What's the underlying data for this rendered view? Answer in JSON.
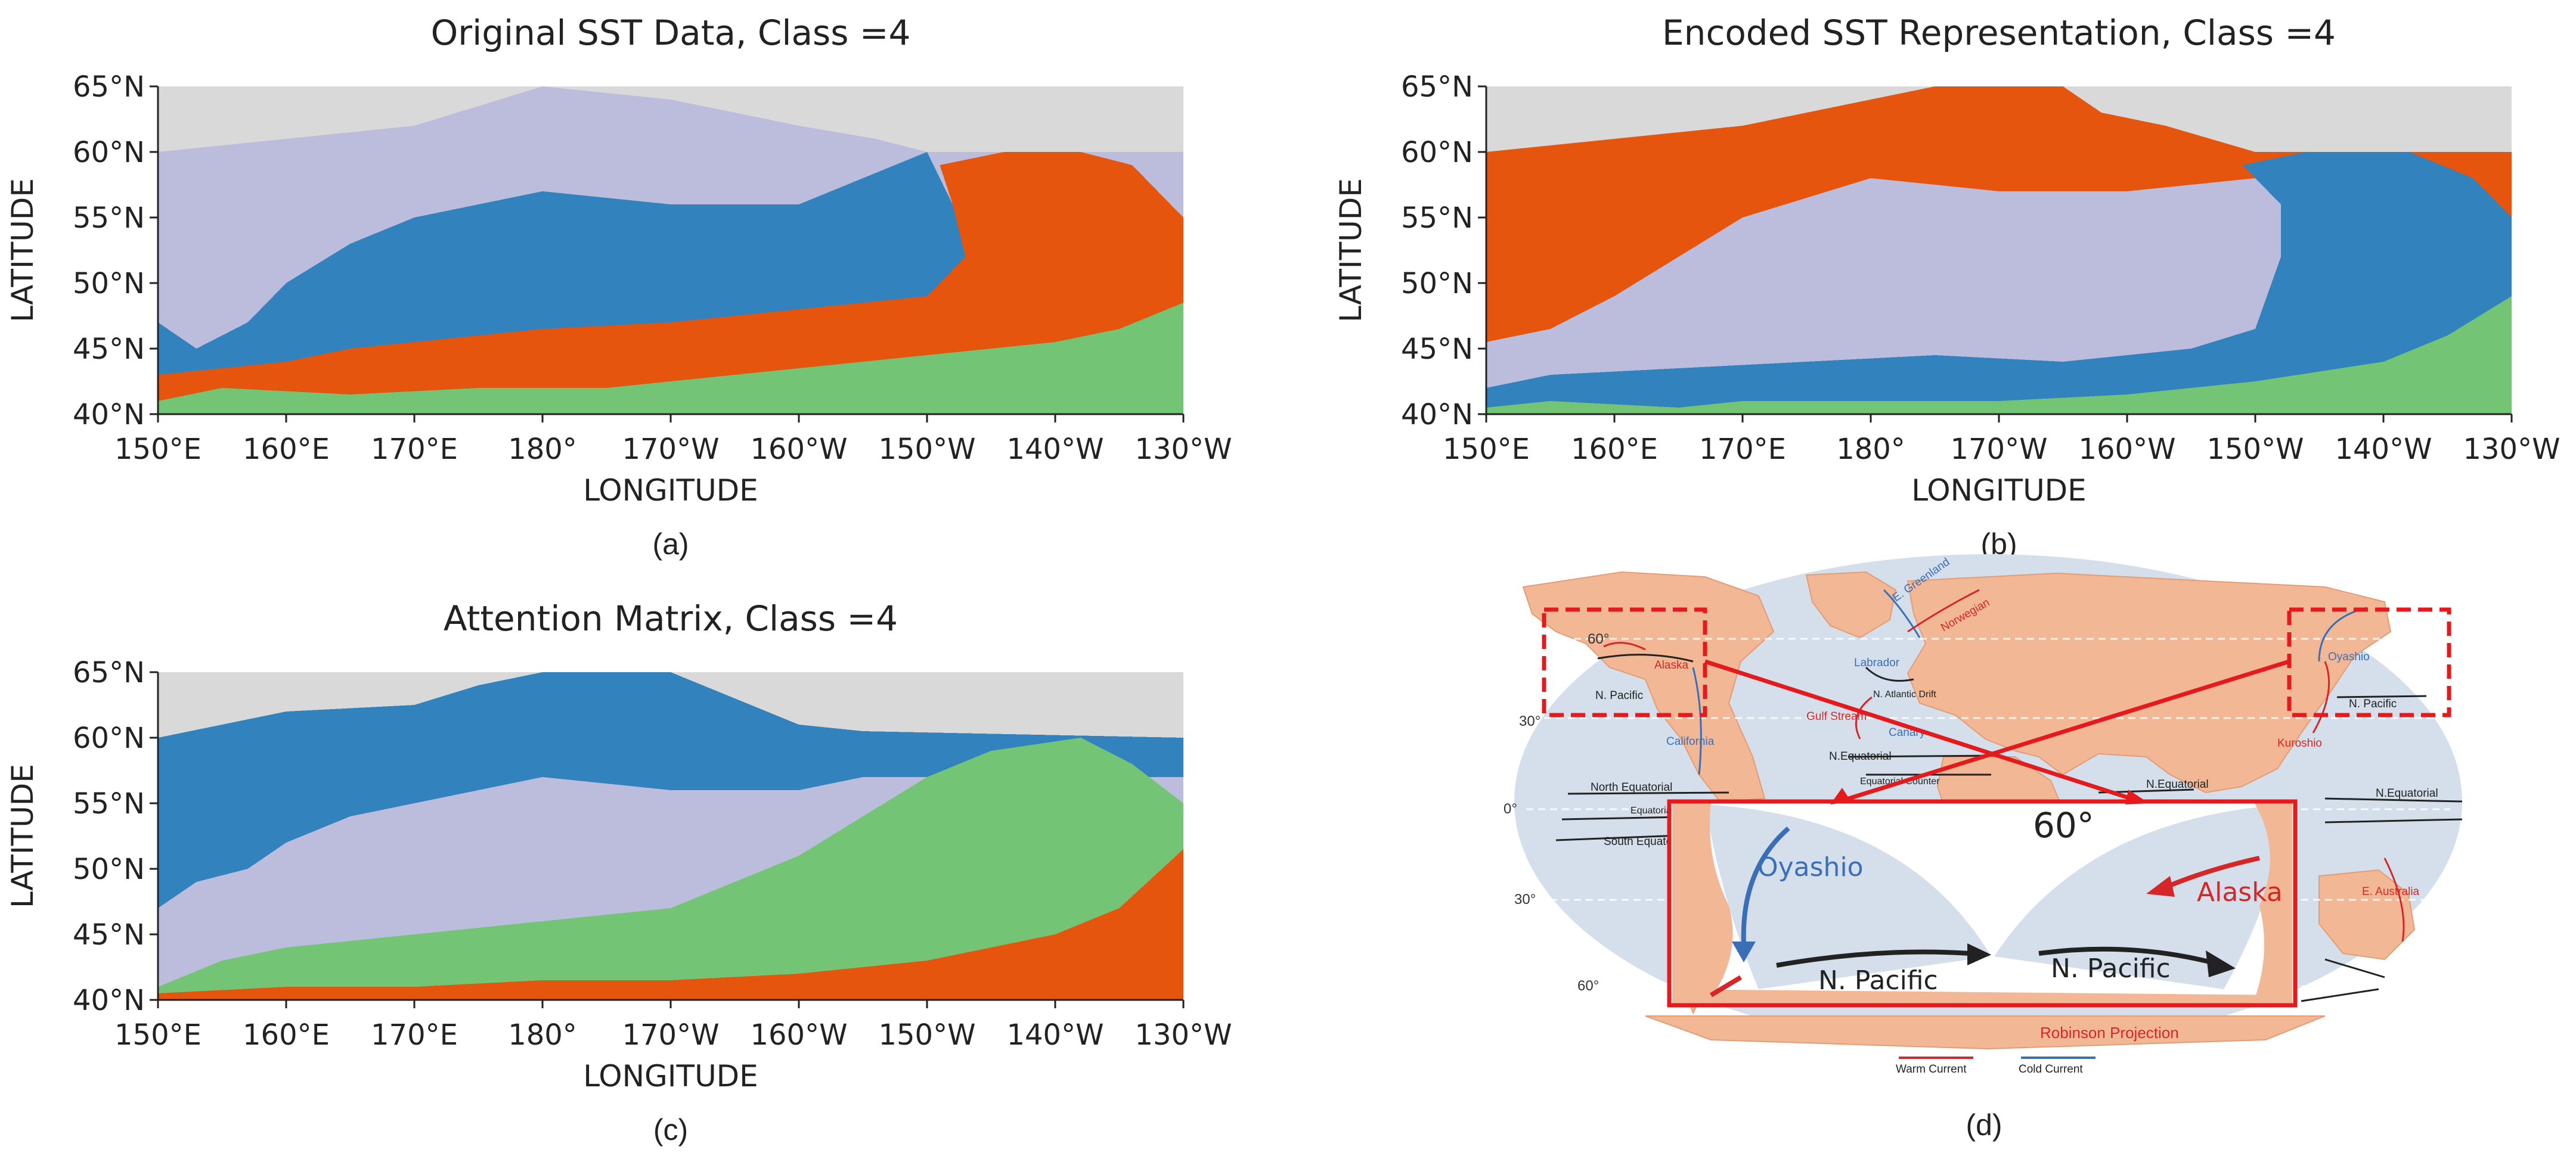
{
  "colors": {
    "land": "#d9d9d9",
    "lavender": "#bcbddc",
    "blue": "#3182bd",
    "orange": "#e6550d",
    "green": "#74c476",
    "red": "#e41a1c"
  },
  "chart_data": [
    {
      "type": "heatmap",
      "title": "Original SST Data, Class =4",
      "caption": "(a)",
      "xlabel": "LONGITUDE",
      "ylabel": "LATITUDE",
      "xlim": [
        150,
        230
      ],
      "ylim": [
        40,
        65
      ],
      "xticks": [
        {
          "value": 150,
          "label": "150°E"
        },
        {
          "value": 160,
          "label": "160°E"
        },
        {
          "value": 170,
          "label": "170°E"
        },
        {
          "value": 180,
          "label": "180°"
        },
        {
          "value": 190,
          "label": "170°W"
        },
        {
          "value": 200,
          "label": "160°W"
        },
        {
          "value": 210,
          "label": "150°W"
        },
        {
          "value": 220,
          "label": "140°W"
        },
        {
          "value": 230,
          "label": "130°W"
        }
      ],
      "yticks": [
        {
          "value": 40,
          "label": "40°N"
        },
        {
          "value": 45,
          "label": "45°N"
        },
        {
          "value": 50,
          "label": "50°N"
        },
        {
          "value": 55,
          "label": "55°N"
        },
        {
          "value": 60,
          "label": "60°N"
        },
        {
          "value": 65,
          "label": "65°N"
        }
      ],
      "categories": [
        "land",
        "lavender",
        "blue",
        "orange",
        "green"
      ],
      "layers": [
        {
          "category": "lavender",
          "boundary": [
            [
              150,
              60
            ],
            [
              160,
              61
            ],
            [
              170,
              62
            ],
            [
              180,
              65
            ],
            [
              190,
              64
            ],
            [
              200,
              62
            ],
            [
              206,
              61
            ],
            [
              210,
              60
            ],
            [
              230,
              60
            ]
          ]
        },
        {
          "category": "blue",
          "boundary": [
            [
              150,
              47
            ],
            [
              153,
              45
            ],
            [
              157,
              47
            ],
            [
              160,
              50
            ],
            [
              165,
              53
            ],
            [
              170,
              55
            ],
            [
              180,
              57
            ],
            [
              190,
              56
            ],
            [
              200,
              56
            ],
            [
              210,
              60
            ],
            [
              211,
              58
            ],
            [
              213,
              54
            ],
            [
              214,
              52
            ],
            [
              230,
              52
            ]
          ]
        },
        {
          "category": "orange",
          "boundary": [
            [
              150,
              43
            ],
            [
              155,
              43.5
            ],
            [
              160,
              44
            ],
            [
              165,
              45
            ],
            [
              170,
              45.5
            ],
            [
              180,
              46.5
            ],
            [
              190,
              47
            ],
            [
              200,
              48
            ],
            [
              210,
              49
            ],
            [
              213,
              52
            ],
            [
              212,
              56
            ],
            [
              211,
              59
            ],
            [
              216,
              60
            ],
            [
              222,
              60
            ],
            [
              226,
              59
            ],
            [
              230,
              55
            ]
          ]
        },
        {
          "category": "green",
          "boundary": [
            [
              150,
              41
            ],
            [
              155,
              42
            ],
            [
              165,
              41.5
            ],
            [
              175,
              42
            ],
            [
              185,
              42
            ],
            [
              190,
              42.5
            ],
            [
              200,
              43.5
            ],
            [
              210,
              44.5
            ],
            [
              220,
              45.5
            ],
            [
              225,
              46.5
            ],
            [
              230,
              48.5
            ]
          ]
        }
      ]
    },
    {
      "type": "heatmap",
      "title": "Encoded SST Representation, Class =4",
      "caption": "(b)",
      "xlabel": "LONGITUDE",
      "ylabel": "LATITUDE",
      "xlim": [
        150,
        230
      ],
      "ylim": [
        40,
        65
      ],
      "xticks": [
        {
          "value": 150,
          "label": "150°E"
        },
        {
          "value": 160,
          "label": "160°E"
        },
        {
          "value": 170,
          "label": "170°E"
        },
        {
          "value": 180,
          "label": "180°"
        },
        {
          "value": 190,
          "label": "170°W"
        },
        {
          "value": 200,
          "label": "160°W"
        },
        {
          "value": 210,
          "label": "150°W"
        },
        {
          "value": 220,
          "label": "140°W"
        },
        {
          "value": 230,
          "label": "130°W"
        }
      ],
      "yticks": [
        {
          "value": 40,
          "label": "40°N"
        },
        {
          "value": 45,
          "label": "45°N"
        },
        {
          "value": 50,
          "label": "50°N"
        },
        {
          "value": 55,
          "label": "55°N"
        },
        {
          "value": 60,
          "label": "60°N"
        },
        {
          "value": 65,
          "label": "65°N"
        }
      ],
      "categories": [
        "land",
        "orange",
        "lavender",
        "blue",
        "green"
      ],
      "layers": [
        {
          "category": "orange",
          "boundary": [
            [
              150,
              60
            ],
            [
              155,
              60.5
            ],
            [
              160,
              61
            ],
            [
              170,
              62
            ],
            [
              180,
              64
            ],
            [
              185,
              65
            ],
            [
              195,
              65
            ],
            [
              198,
              63
            ],
            [
              203,
              62
            ],
            [
              210,
              60
            ],
            [
              230,
              60
            ]
          ]
        },
        {
          "category": "lavender",
          "boundary": [
            [
              150,
              45.5
            ],
            [
              155,
              46.5
            ],
            [
              160,
              49
            ],
            [
              165,
              52
            ],
            [
              170,
              55
            ],
            [
              180,
              58
            ],
            [
              190,
              57
            ],
            [
              200,
              57
            ],
            [
              210,
              58
            ],
            [
              212,
              56
            ],
            [
              215,
              53
            ],
            [
              215,
              51
            ],
            [
              230,
              51
            ]
          ]
        },
        {
          "category": "blue",
          "boundary": [
            [
              150,
              42
            ],
            [
              155,
              43
            ],
            [
              165,
              43.5
            ],
            [
              175,
              44
            ],
            [
              185,
              44.5
            ],
            [
              195,
              44
            ],
            [
              205,
              45
            ],
            [
              210,
              46.5
            ],
            [
              212,
              52
            ],
            [
              212,
              56
            ],
            [
              209,
              59
            ],
            [
              214,
              60
            ],
            [
              222,
              60
            ],
            [
              227,
              58
            ],
            [
              230,
              55
            ]
          ]
        },
        {
          "category": "green",
          "boundary": [
            [
              150,
              40.5
            ],
            [
              155,
              41
            ],
            [
              165,
              40.5
            ],
            [
              170,
              41
            ],
            [
              180,
              41
            ],
            [
              190,
              41
            ],
            [
              200,
              41.5
            ],
            [
              210,
              42.5
            ],
            [
              220,
              44
            ],
            [
              225,
              46
            ],
            [
              230,
              49
            ]
          ]
        }
      ]
    },
    {
      "type": "heatmap",
      "title": "Attention Matrix, Class =4",
      "caption": "(c)",
      "xlabel": "LONGITUDE",
      "ylabel": "LATITUDE",
      "xlim": [
        150,
        230
      ],
      "ylim": [
        40,
        65
      ],
      "xticks": [
        {
          "value": 150,
          "label": "150°E"
        },
        {
          "value": 160,
          "label": "160°E"
        },
        {
          "value": 170,
          "label": "170°E"
        },
        {
          "value": 180,
          "label": "180°"
        },
        {
          "value": 190,
          "label": "170°W"
        },
        {
          "value": 200,
          "label": "160°W"
        },
        {
          "value": 210,
          "label": "150°W"
        },
        {
          "value": 220,
          "label": "140°W"
        },
        {
          "value": 230,
          "label": "130°W"
        }
      ],
      "yticks": [
        {
          "value": 40,
          "label": "40°N"
        },
        {
          "value": 45,
          "label": "45°N"
        },
        {
          "value": 50,
          "label": "50°N"
        },
        {
          "value": 55,
          "label": "55°N"
        },
        {
          "value": 60,
          "label": "60°N"
        },
        {
          "value": 65,
          "label": "65°N"
        }
      ],
      "categories": [
        "land",
        "blue",
        "lavender",
        "green",
        "orange"
      ],
      "layers": [
        {
          "category": "blue",
          "boundary": [
            [
              150,
              60
            ],
            [
              155,
              61
            ],
            [
              160,
              62
            ],
            [
              170,
              62.5
            ],
            [
              175,
              64
            ],
            [
              180,
              65
            ],
            [
              190,
              65
            ],
            [
              195,
              63
            ],
            [
              200,
              61
            ],
            [
              205,
              60.5
            ],
            [
              230,
              60
            ]
          ]
        },
        {
          "category": "lavender",
          "boundary": [
            [
              150,
              47
            ],
            [
              153,
              49
            ],
            [
              157,
              50
            ],
            [
              160,
              52
            ],
            [
              165,
              54
            ],
            [
              170,
              55
            ],
            [
              180,
              57
            ],
            [
              190,
              56
            ],
            [
              200,
              56
            ],
            [
              205,
              57
            ],
            [
              230,
              57
            ]
          ]
        },
        {
          "category": "green",
          "boundary": [
            [
              150,
              41
            ],
            [
              155,
              43
            ],
            [
              160,
              44
            ],
            [
              170,
              45
            ],
            [
              180,
              46
            ],
            [
              190,
              47
            ],
            [
              195,
              49
            ],
            [
              200,
              51
            ],
            [
              210,
              57
            ],
            [
              215,
              59
            ],
            [
              222,
              60
            ],
            [
              226,
              58
            ],
            [
              230,
              55
            ]
          ]
        },
        {
          "category": "orange",
          "boundary": [
            [
              150,
              40.5
            ],
            [
              160,
              41
            ],
            [
              170,
              41
            ],
            [
              180,
              41.5
            ],
            [
              190,
              41.5
            ],
            [
              200,
              42
            ],
            [
              210,
              43
            ],
            [
              220,
              45
            ],
            [
              225,
              47
            ],
            [
              230,
              51.5
            ]
          ]
        }
      ]
    }
  ],
  "map_panel": {
    "caption": "(d)",
    "labels": {
      "lat_60n": "60°",
      "lat_30n": "30°",
      "lat_0": "0°",
      "lat_30s": "30°",
      "lat_60s": "60°",
      "zoom_60": "60°",
      "oyashio_small": "Oyashio",
      "npacific_small_right": "N. Pacific",
      "kuroshio": "Kuroshio",
      "n_equatorial_right": "N.Equatorial",
      "e_australia": "E. Australia",
      "alaska_small": "Alaska",
      "npacific_small_left": "N. Pacific",
      "california": "California",
      "north_equatorial": "North Equatorial",
      "equatorial_counter": "Equatorial Counter",
      "south_equatorial": "South Equatorial",
      "labrador": "Labrador",
      "e_greenland": "E. Greenland",
      "norwegian": "Norwegian",
      "gulf_stream": "Gulf Stream",
      "n_atlantic_drift": "N. Atlantic Drift",
      "canary": "Canary",
      "n_equatorial_mid": "N.Equatorial",
      "equatorial_counter_mid": "Equatorial Counter",
      "n_equatorial_indian": "N.Equatorial",
      "zoom_oyashio": "Oyashio",
      "zoom_alaska": "Alaska",
      "zoom_npacific_left": "N. Pacific",
      "zoom_npacific_right": "N. Pacific",
      "robinson": "Robinson Projection",
      "legend_warm": "Warm Current",
      "legend_cold": "Cold Current"
    }
  }
}
